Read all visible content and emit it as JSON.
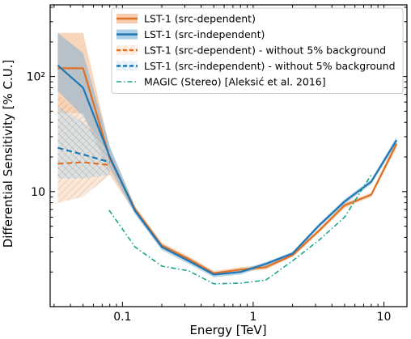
{
  "chart_data": {
    "type": "line",
    "xlabel": "Energy [TeV]",
    "ylabel": "Differential Sensitivity [% C.U.]",
    "xscale": "log",
    "yscale": "log",
    "xlim": [
      0.028,
      15
    ],
    "ylim": [
      1.0,
      420
    ],
    "x_ticks": [
      {
        "value": 0.1,
        "label": "0.1"
      },
      {
        "value": 1,
        "label": "1"
      },
      {
        "value": 10,
        "label": "10"
      }
    ],
    "y_ticks": [
      {
        "value": 10,
        "label": "10"
      },
      {
        "value": 100,
        "label": "10²"
      }
    ],
    "grid": false,
    "legend_position": "top-right",
    "series": [
      {
        "name": "LST-1 (src-dependent)",
        "color": "#e07024",
        "style": "solid",
        "x": [
          0.032,
          0.05,
          0.08,
          0.125,
          0.2,
          0.32,
          0.5,
          0.8,
          1.25,
          2.0,
          3.2,
          5.0,
          8.0,
          12.5
        ],
        "y": [
          118,
          118,
          19.5,
          7.0,
          3.4,
          2.6,
          1.95,
          2.1,
          2.2,
          2.8,
          4.6,
          7.6,
          9.4,
          26
        ],
        "band_lower": [
          48,
          48,
          14,
          6.5,
          3.2,
          2.45,
          1.85,
          2.0,
          2.1,
          2.7,
          4.4,
          7.2,
          9.0,
          24
        ],
        "band_upper": [
          240,
          240,
          24,
          7.5,
          3.6,
          2.75,
          2.05,
          2.2,
          2.3,
          2.9,
          4.8,
          8.0,
          9.8,
          28
        ]
      },
      {
        "name": "LST-1 (src-independent)",
        "color": "#1f77b4",
        "style": "solid",
        "x": [
          0.032,
          0.05,
          0.08,
          0.125,
          0.2,
          0.32,
          0.5,
          0.8,
          1.25,
          2.0,
          3.2,
          5.0,
          8.0,
          12.5
        ],
        "y": [
          125,
          80,
          20,
          6.8,
          3.3,
          2.5,
          1.9,
          2.0,
          2.35,
          2.9,
          5.1,
          8.2,
          12.2,
          28
        ],
        "band_lower": [
          75,
          45,
          16,
          6.3,
          3.1,
          2.35,
          1.8,
          1.9,
          2.25,
          2.8,
          4.9,
          7.8,
          11.6,
          26
        ],
        "band_upper": [
          240,
          160,
          25,
          7.3,
          3.5,
          2.65,
          2.0,
          2.1,
          2.45,
          3.0,
          5.3,
          8.6,
          12.8,
          30
        ]
      },
      {
        "name": "LST-1 (src-dependent) - without 5% background",
        "color": "#e07024",
        "style": "dashed",
        "x": [
          0.032,
          0.05,
          0.08
        ],
        "y": [
          17.5,
          18,
          17
        ],
        "band_lower": [
          8,
          9,
          14
        ],
        "band_upper": [
          70,
          45,
          21
        ]
      },
      {
        "name": "LST-1 (src-independent) - without 5% background",
        "color": "#1f77b4",
        "style": "dashed",
        "x": [
          0.032,
          0.05,
          0.08
        ],
        "y": [
          24,
          21,
          18
        ],
        "band_lower": [
          13,
          13,
          14
        ],
        "band_upper": [
          55,
          40,
          23
        ]
      },
      {
        "name": "MAGIC (Stereo) [Aleksić et al. 2016]",
        "color": "#17a589",
        "style": "dashdot",
        "x": [
          0.079,
          0.125,
          0.2,
          0.32,
          0.5,
          0.8,
          1.25,
          2.0,
          3.2,
          5.0,
          8.0
        ],
        "y": [
          6.9,
          3.3,
          2.25,
          2.05,
          1.58,
          1.6,
          1.7,
          2.5,
          3.8,
          6.0,
          14
        ]
      }
    ]
  }
}
